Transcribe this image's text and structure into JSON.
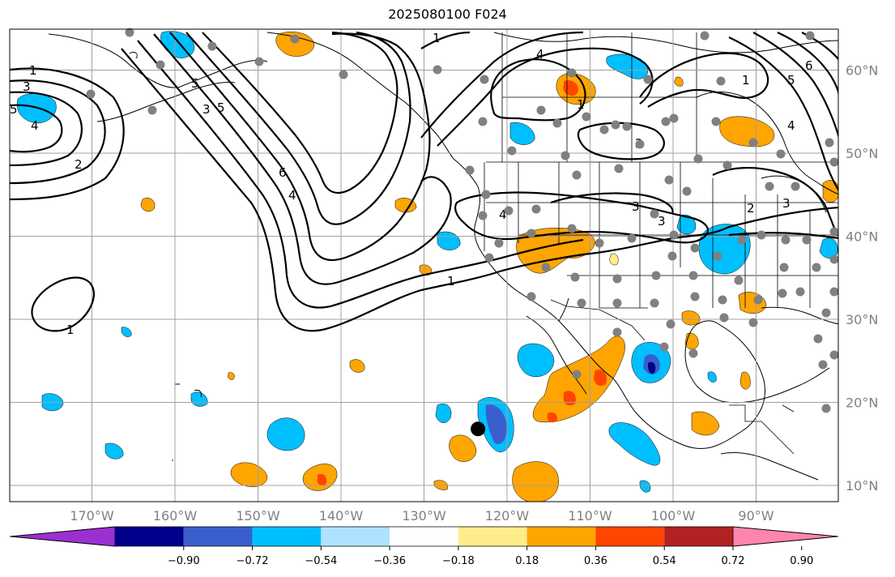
{
  "title": "2025080100 F024",
  "map": {
    "lat_labels": [
      {
        "lat": 60,
        "label": "60°N"
      },
      {
        "lat": 50,
        "label": "50°N"
      },
      {
        "lat": 40,
        "label": "40°N"
      },
      {
        "lat": 30,
        "label": "30°N"
      },
      {
        "lat": 20,
        "label": "20°N"
      },
      {
        "lat": 10,
        "label": "10°N"
      }
    ],
    "lon_labels": [
      {
        "lon": -170,
        "label": "170°W"
      },
      {
        "lon": -160,
        "label": "160°W"
      },
      {
        "lon": -150,
        "label": "150°W"
      },
      {
        "lon": -140,
        "label": "140°W"
      },
      {
        "lon": -130,
        "label": "130°W"
      },
      {
        "lon": -120,
        "label": "120°W"
      },
      {
        "lon": -110,
        "label": "110°W"
      },
      {
        "lon": -100,
        "label": "100°W"
      },
      {
        "lon": -90,
        "label": "90°W"
      }
    ],
    "contour_labels": [
      "1",
      "2",
      "3",
      "4",
      "5",
      "6"
    ],
    "storm_marker": {
      "lat": 16.8,
      "lon": -123.5,
      "color": "#000000"
    },
    "station_color": "#808080"
  },
  "colorbar": {
    "ticks": [
      "−0.90",
      "−0.72",
      "−0.54",
      "−0.36",
      "−0.18",
      "0.18",
      "0.36",
      "0.54",
      "0.72",
      "0.90"
    ],
    "colors": [
      "#9b30d0",
      "#00008b",
      "#3a5fcd",
      "#00bfff",
      "#b0e2ff",
      "#ffffff",
      "#ffec8b",
      "#ffa500",
      "#ff4500",
      "#b22222",
      "#ff85ad"
    ]
  }
}
